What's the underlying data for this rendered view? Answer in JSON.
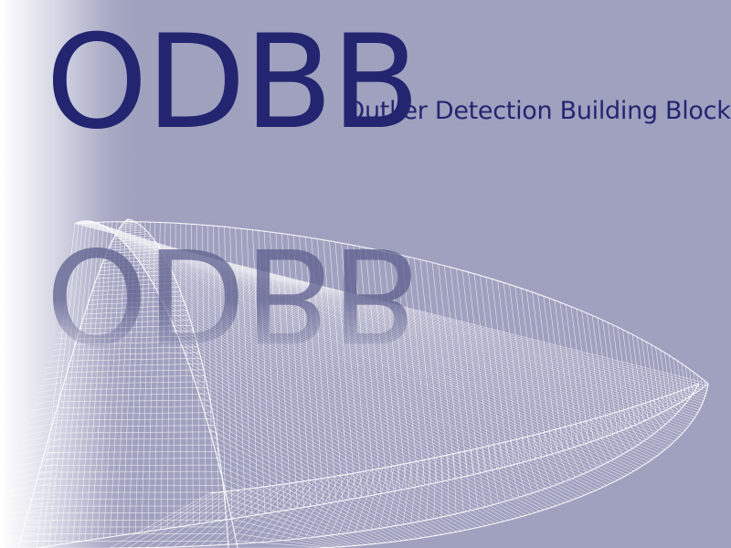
{
  "title": "ODBB",
  "subtitle": "Outlier Detection Building Block",
  "colors": {
    "background": "#a0a1bf",
    "title": "#232570",
    "reflection": "#5e5f8e",
    "mesh_lines": "#ffffff"
  },
  "decoration": "white-wireframe-mesh"
}
